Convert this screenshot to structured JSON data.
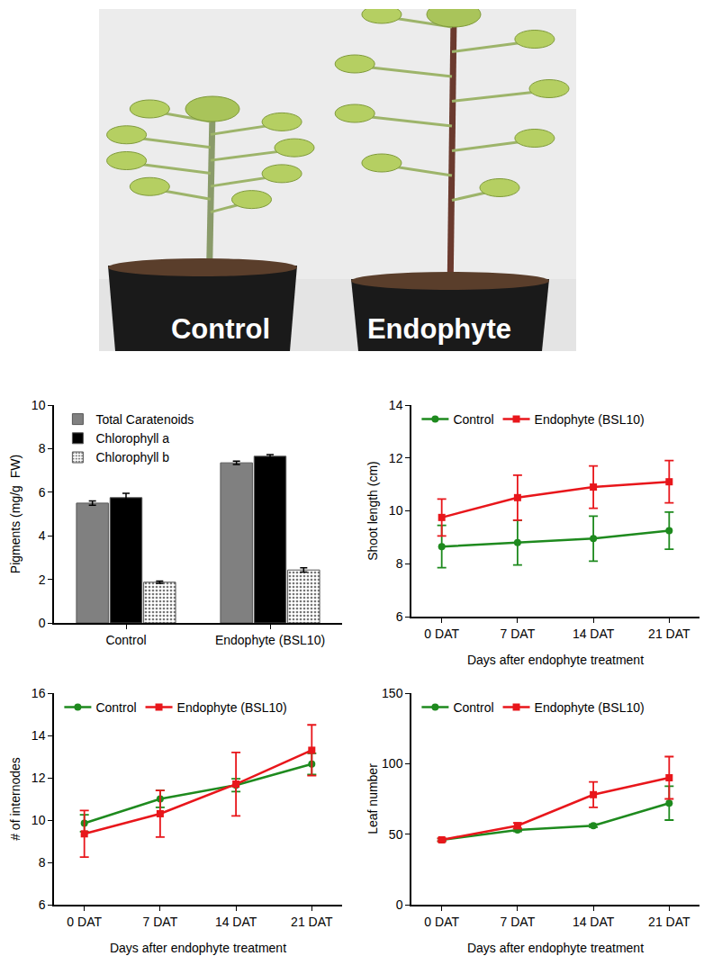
{
  "photo": {
    "labels": [
      "Control",
      "Endophyte"
    ]
  },
  "chart_data": [
    {
      "type": "bar",
      "ylabel": "Pigments (mg/g  FW)",
      "categories": [
        "Control",
        "Endophyte (BSL10)"
      ],
      "series": [
        {
          "name": "Total Caratenoids",
          "color": "#808080",
          "values": [
            5.5,
            7.35
          ],
          "errors": [
            0.1,
            0.08
          ]
        },
        {
          "name": "Chlorophyll a",
          "color": "#000000",
          "values": [
            5.75,
            7.65
          ],
          "errors": [
            0.2,
            0.08
          ]
        },
        {
          "name": "Chlorophyll b",
          "color": "#ffffff",
          "marker": "dotted",
          "values": [
            1.87,
            2.43
          ],
          "errors": [
            0.05,
            0.1
          ]
        }
      ],
      "ylim": [
        0,
        10
      ],
      "yticks": [
        0,
        2,
        4,
        6,
        8,
        10
      ],
      "legend": "upper left",
      "grid": false
    },
    {
      "type": "line",
      "xlabel": "Days after endophyte treatment",
      "ylabel": "Shoot length (cm)",
      "categories": [
        "0 DAT",
        "7 DAT",
        "14 DAT",
        "21 DAT"
      ],
      "series": [
        {
          "name": "Control",
          "color": "#1e8a1e",
          "marker": "circle",
          "values": [
            8.65,
            8.8,
            8.95,
            9.25
          ],
          "errors": [
            0.8,
            0.85,
            0.85,
            0.7
          ]
        },
        {
          "name": "Endophyte (BSL10)",
          "color": "#e8161b",
          "marker": "square",
          "values": [
            9.75,
            10.5,
            10.9,
            11.1
          ],
          "errors": [
            0.7,
            0.85,
            0.8,
            0.8
          ]
        }
      ],
      "ylim": [
        6,
        14
      ],
      "yticks": [
        6,
        8,
        10,
        12,
        14
      ],
      "legend": "upper left",
      "grid": false
    },
    {
      "type": "line",
      "xlabel": "Days after endophyte treatment",
      "ylabel": "# of internodes",
      "categories": [
        "0 DAT",
        "7 DAT",
        "14 DAT",
        "21 DAT"
      ],
      "series": [
        {
          "name": "Control",
          "color": "#1e8a1e",
          "marker": "circle",
          "values": [
            9.85,
            11.0,
            11.65,
            12.65
          ],
          "errors": [
            0.4,
            0.4,
            0.3,
            0.5
          ]
        },
        {
          "name": "Endophyte (BSL10)",
          "color": "#e8161b",
          "marker": "square",
          "values": [
            9.35,
            10.3,
            11.7,
            13.3
          ],
          "errors": [
            1.1,
            1.1,
            1.5,
            1.2
          ]
        }
      ],
      "ylim": [
        6,
        16
      ],
      "yticks": [
        6,
        8,
        10,
        12,
        14,
        16
      ],
      "legend": "upper left",
      "grid": false
    },
    {
      "type": "line",
      "xlabel": "Days after endophyte treatment",
      "ylabel": "Leaf number",
      "categories": [
        "0 DAT",
        "7 DAT",
        "14 DAT",
        "21 DAT"
      ],
      "series": [
        {
          "name": "Control",
          "color": "#1e8a1e",
          "marker": "circle",
          "values": [
            46,
            53,
            56,
            72
          ],
          "errors": [
            1,
            1,
            1,
            12
          ]
        },
        {
          "name": "Endophyte (BSL10)",
          "color": "#e8161b",
          "marker": "square",
          "values": [
            46,
            56,
            78,
            90
          ],
          "errors": [
            1,
            2,
            9,
            15
          ]
        }
      ],
      "ylim": [
        0,
        150
      ],
      "yticks": [
        0,
        50,
        100,
        150
      ],
      "legend": "upper left",
      "grid": false
    }
  ]
}
